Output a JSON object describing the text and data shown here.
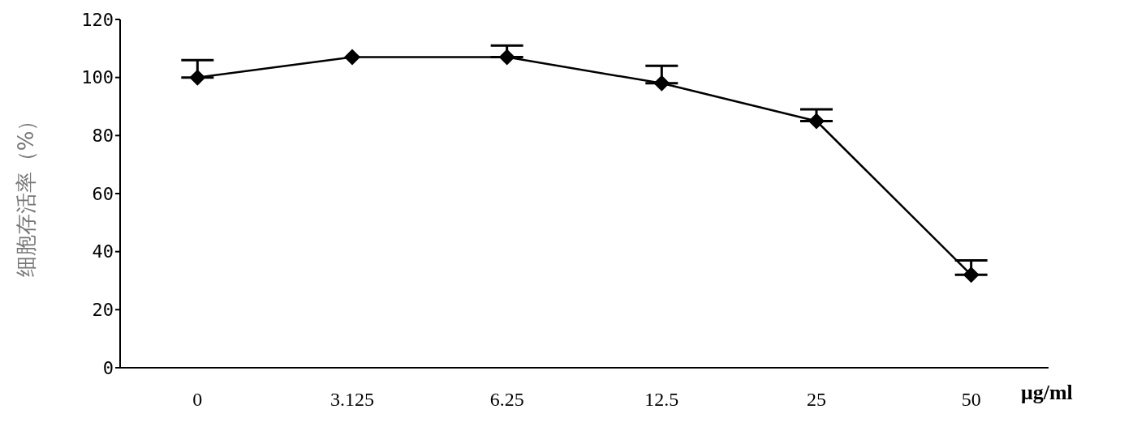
{
  "chart_data": {
    "type": "line",
    "ylabel": "细胞存活率（%）",
    "xlabel": "μg/ml",
    "categories": [
      "0",
      "3.125",
      "6.25",
      "12.5",
      "25",
      "50"
    ],
    "values": [
      100,
      107,
      107,
      98,
      85,
      32
    ],
    "errors": [
      [
        100,
        106
      ],
      null,
      [
        107,
        111
      ],
      [
        98,
        104
      ],
      [
        85,
        89
      ],
      [
        32,
        37
      ]
    ],
    "color": "#000000",
    "ylim": [
      0,
      120
    ],
    "yticks": [
      0,
      20,
      40,
      60,
      80,
      100,
      120
    ],
    "grid": false,
    "marker": "diamond",
    "line_style": "solid"
  }
}
